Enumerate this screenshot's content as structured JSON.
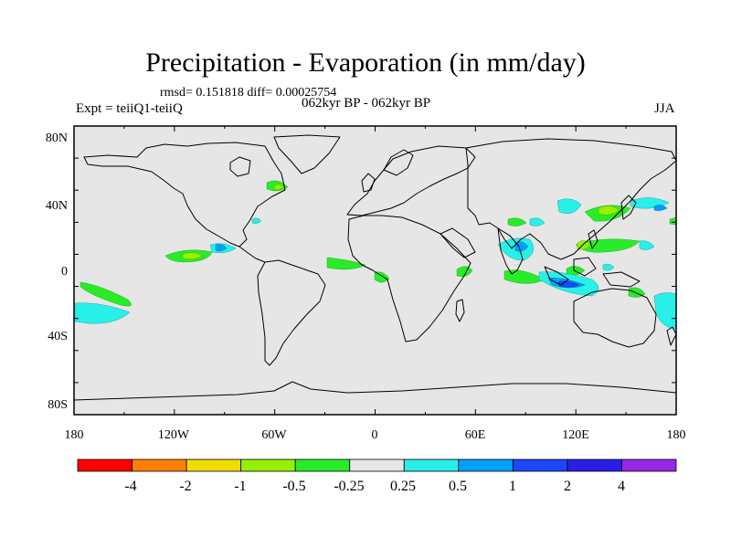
{
  "header": {
    "title": "Precipitation - Evaporation (in mm/day)",
    "stats": "rmsd= 0.151818 diff= 0.00025754",
    "experiment": "Expt = teiiQ1-teiiQ",
    "period": "062kyr BP - 062kyr BP",
    "season": "JJA"
  },
  "axes": {
    "lat_labels": [
      "80N",
      "40N",
      "0",
      "40S",
      "80S"
    ],
    "lon_labels": [
      "180",
      "120W",
      "60W",
      "0",
      "60E",
      "120E",
      "180"
    ]
  },
  "colorbar": {
    "colors": [
      "#ff0000",
      "#ff8000",
      "#f0dc00",
      "#96f000",
      "#28ec28",
      "#e6e6e6",
      "#28f0e8",
      "#00a0ff",
      "#1e46ff",
      "#2a1ee6",
      "#9628e6"
    ],
    "labels": [
      "-4",
      "-2",
      "-1",
      "-0.5",
      "-0.25",
      "0.25",
      "0.5",
      "1",
      "2",
      "4"
    ]
  },
  "colors": {
    "map_background": "#e6e6e6",
    "coastline": "#000000"
  }
}
